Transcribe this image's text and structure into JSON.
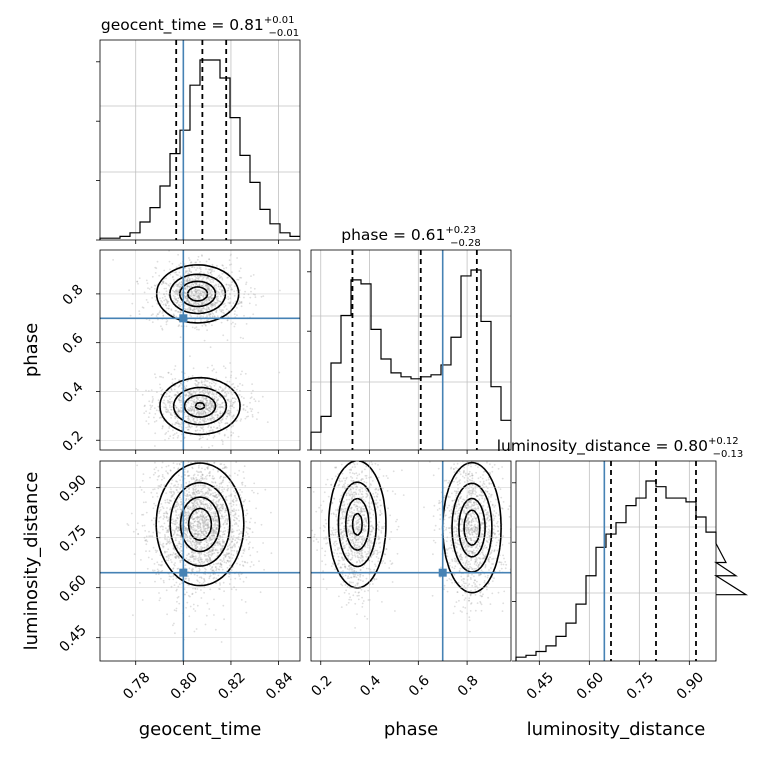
{
  "chart_data": {
    "type": "corner",
    "parameters": [
      "geocent_time",
      "phase",
      "luminosity_distance"
    ],
    "xlabels": [
      "geocent_time",
      "phase",
      "luminosity_distance"
    ],
    "ylabels": [
      "phase",
      "luminosity_distance"
    ],
    "titles": [
      {
        "param": "geocent_time",
        "label": "geocent_time = 0.81",
        "median": 0.81,
        "upper": "+0.01",
        "lower": "−0.01"
      },
      {
        "param": "phase",
        "label": "phase = 0.61",
        "median": 0.61,
        "upper": "+0.23",
        "lower": "−0.28"
      },
      {
        "param": "luminosity_distance",
        "label": "luminosity_distance = 0.80",
        "median": 0.8,
        "upper": "+0.12",
        "lower": "−0.13"
      }
    ],
    "ranges": {
      "geocent_time": [
        0.765,
        0.849
      ],
      "phase": [
        0.16,
        0.98
      ],
      "luminosity_distance": [
        0.38,
        0.98
      ]
    },
    "ticks": {
      "geocent_time": {
        "values": [
          0.78,
          0.8,
          0.82,
          0.84
        ],
        "labels": [
          "0.78",
          "0.80",
          "0.82",
          "0.84"
        ]
      },
      "phase": {
        "values": [
          0.2,
          0.4,
          0.6,
          0.8
        ],
        "labels": [
          "0.2",
          "0.4",
          "0.6",
          "0.8"
        ]
      },
      "luminosity_distance": {
        "values": [
          0.45,
          0.6,
          0.75,
          0.9
        ],
        "labels": [
          "0.45",
          "0.60",
          "0.75",
          "0.90"
        ]
      }
    },
    "truths": {
      "geocent_time": 0.8,
      "phase": 0.7,
      "luminosity_distance": 0.645
    },
    "quantiles": {
      "geocent_time": [
        0.797,
        0.808,
        0.818
      ],
      "phase": [
        0.33,
        0.61,
        0.84
      ],
      "luminosity_distance": [
        0.665,
        0.8,
        0.92
      ]
    },
    "histograms": {
      "geocent_time": {
        "bin_start": 0.765,
        "bin_width": 0.0042,
        "counts": [
          0.01,
          0.01,
          0.02,
          0.04,
          0.1,
          0.18,
          0.3,
          0.48,
          0.61,
          0.86,
          1.0,
          1.0,
          0.9,
          0.68,
          0.47,
          0.32,
          0.17,
          0.09,
          0.04,
          0.02
        ]
      },
      "phase": {
        "bin_start": 0.16,
        "bin_width": 0.041,
        "counts": [
          0.09,
          0.17,
          0.44,
          0.68,
          0.86,
          0.84,
          0.61,
          0.46,
          0.39,
          0.37,
          0.36,
          0.37,
          0.38,
          0.43,
          0.57,
          0.88,
          0.91,
          0.65,
          0.32,
          0.15
        ]
      },
      "luminosity_distance": {
        "bin_start": 0.38,
        "bin_width": 0.03,
        "counts": [
          0.02,
          0.03,
          0.05,
          0.08,
          0.13,
          0.2,
          0.3,
          0.45,
          0.6,
          0.67,
          0.73,
          0.82,
          0.86,
          0.95,
          0.92,
          0.86,
          0.86,
          0.84,
          0.76,
          0.68,
          0.62,
          0.52,
          0.45,
          0.35
        ]
      }
    },
    "density_modes": {
      "phase_vs_geocent_time": [
        {
          "x": 0.806,
          "y": 0.8,
          "sx": 0.008,
          "sy": 0.055,
          "w": 1.0
        },
        {
          "x": 0.807,
          "y": 0.34,
          "sx": 0.008,
          "sy": 0.055,
          "w": 0.9
        }
      ],
      "luminosity_distance_vs_geocent_time": [
        {
          "x": 0.807,
          "y": 0.79,
          "sx": 0.0085,
          "sy": 0.085,
          "w": 1.0
        }
      ],
      "luminosity_distance_vs_phase": [
        {
          "x": 0.35,
          "y": 0.79,
          "sx": 0.055,
          "sy": 0.09,
          "w": 0.9
        },
        {
          "x": 0.82,
          "y": 0.78,
          "sx": 0.055,
          "sy": 0.09,
          "w": 1.0
        }
      ]
    },
    "colors": {
      "truth": "#4682b4",
      "line": "#000000",
      "grid": "#c0c0c0",
      "points": "#a0a0a0"
    }
  }
}
